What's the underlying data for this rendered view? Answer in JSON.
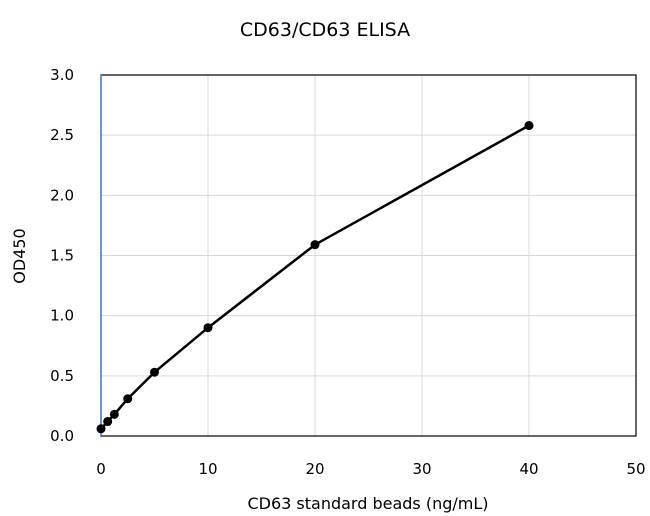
{
  "chart_data": {
    "type": "line",
    "title": "CD63/CD63 ELISA",
    "xlabel": "CD63 standard beads (ng/mL)",
    "ylabel": "OD450",
    "xlim": [
      0,
      50
    ],
    "ylim": [
      0,
      3.0
    ],
    "x_ticks": [
      "0",
      "10",
      "20",
      "30",
      "40",
      "50"
    ],
    "y_ticks": [
      "0.0",
      "0.5",
      "1.0",
      "1.5",
      "2.0",
      "2.5",
      "3.0"
    ],
    "grid": true,
    "legend": "none",
    "series": [
      {
        "x": [
          0,
          0.625,
          1.25,
          2.5,
          5,
          10,
          20,
          40
        ],
        "y": [
          0.06,
          0.12,
          0.18,
          0.31,
          0.53,
          0.9,
          1.59,
          2.58
        ]
      }
    ],
    "colors": {
      "line": "#000000",
      "marker": "#000000",
      "grid": "#d9d9d9",
      "y_axis": "#4a86c8"
    }
  }
}
